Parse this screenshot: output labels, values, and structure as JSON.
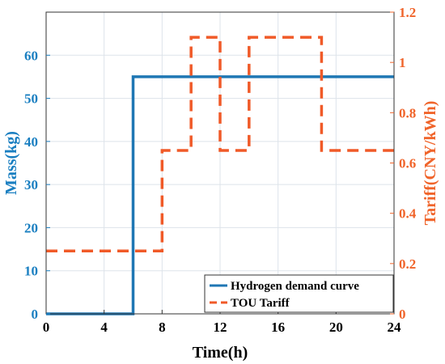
{
  "chart_data": {
    "type": "line",
    "title": "",
    "xlabel": "Time(h)",
    "ylabel_left": "Mass(kg)",
    "ylabel_right": "Tariff(CNY/kWh)",
    "xlim": [
      0,
      24
    ],
    "ylim_left": [
      0,
      70
    ],
    "ylim_right": [
      0,
      1.2
    ],
    "x_ticks": [
      0,
      4,
      8,
      12,
      16,
      20,
      24
    ],
    "y_left_ticks": [
      0,
      10,
      20,
      30,
      40,
      50,
      60
    ],
    "y_right_ticks": [
      0,
      0.2,
      0.4,
      0.6,
      0.8,
      1,
      1.2
    ],
    "grid": true,
    "legend_position": "bottom-right",
    "colors": {
      "left_axis": "#1a7fc1",
      "right_axis": "#f0642a",
      "demand_line": "#1f77b4",
      "tariff_line": "#f05a28",
      "grid": "#dde3ea"
    },
    "series": [
      {
        "name": "Hydrogen demand curve",
        "axis": "left",
        "style": "solid",
        "x": [
          0,
          6,
          6,
          24
        ],
        "y": [
          0,
          0,
          55,
          55
        ]
      },
      {
        "name": "TOU Tariff",
        "axis": "right",
        "style": "dashed",
        "x": [
          0,
          8,
          8,
          10,
          10,
          12,
          12,
          14,
          14,
          19,
          19,
          24
        ],
        "y": [
          0.25,
          0.25,
          0.65,
          0.65,
          1.1,
          1.1,
          0.65,
          0.65,
          1.1,
          1.1,
          0.65,
          0.65
        ]
      }
    ]
  }
}
